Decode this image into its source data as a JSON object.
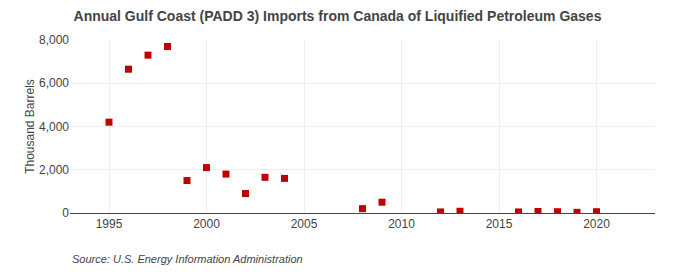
{
  "chart_data": {
    "type": "scatter",
    "title": "Annual Gulf Coast (PADD 3) Imports from Canada of Liquified Petroleum Gases",
    "ylabel": "Thousand Barrels",
    "annotations": [
      "Source: U.S. Energy Information Administration"
    ],
    "x": [
      1995,
      1996,
      1997,
      1998,
      1999,
      2000,
      2001,
      2002,
      2003,
      2004,
      2008,
      2009,
      2012,
      2013,
      2016,
      2017,
      2018,
      2019,
      2020
    ],
    "values": [
      4200,
      6650,
      7300,
      7700,
      1500,
      2100,
      1800,
      900,
      1650,
      1600,
      200,
      500,
      50,
      80,
      50,
      70,
      60,
      30,
      60
    ],
    "color": "#c00000",
    "marker": "square",
    "xlim": [
      1993,
      2023
    ],
    "ylim": [
      0,
      8000
    ],
    "xticks": [
      1995,
      2000,
      2005,
      2010,
      2015,
      2020
    ],
    "yticks": [
      0,
      {
        "value": 2000,
        "label": "2,000"
      },
      {
        "value": 4000,
        "label": "4,000"
      },
      {
        "value": 6000,
        "label": "6,000"
      },
      {
        "value": 8000,
        "label": "8,000"
      }
    ],
    "grid": true
  }
}
